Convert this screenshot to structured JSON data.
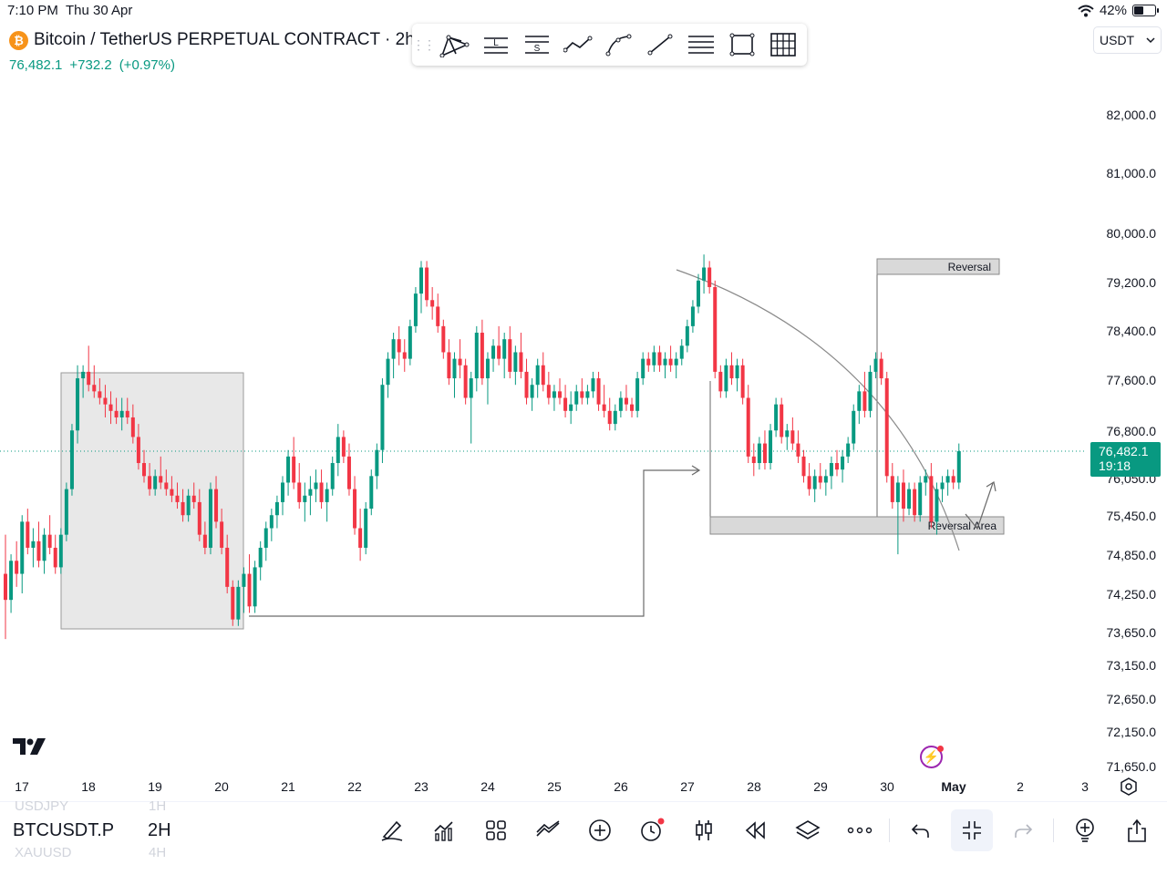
{
  "status_bar": {
    "time": "7:10 PM",
    "date": "Thu 30 Apr",
    "battery": "42%"
  },
  "header": {
    "title": "Bitcoin / TetherUS PERPETUAL CONTRACT · 2h ·",
    "coin_icon": "₿",
    "last_price": "76,482.1",
    "change": "+732.2",
    "change_pct": "(+0.97%)"
  },
  "drawing_toolbar": {
    "tools": [
      "pitchfork-icon",
      "long-position-icon",
      "short-position-icon",
      "path-icon",
      "curve-icon",
      "trend-line-icon",
      "horizontal-lines-icon",
      "rectangle-icon",
      "grid-icon"
    ],
    "long_letter": "L",
    "short_letter": "S"
  },
  "currency": {
    "selected": "USDT"
  },
  "price_axis": [
    "82,000.0",
    "81,000.0",
    "80,000.0",
    "79,200.0",
    "78,400.0",
    "77,600.0",
    "76,800.0",
    "76,050.0",
    "75,450.0",
    "74,850.0",
    "74,250.0",
    "73,650.0",
    "73,150.0",
    "72,650.0",
    "72,150.0",
    "71,650.0"
  ],
  "price_tag": {
    "price": "76,482.1",
    "countdown": "19:18"
  },
  "time_axis": [
    "17",
    "18",
    "19",
    "20",
    "21",
    "22",
    "23",
    "24",
    "25",
    "26",
    "27",
    "28",
    "29",
    "30",
    "May",
    "2",
    "3"
  ],
  "annotations": {
    "reversal_label": "Reversal",
    "reversal_area_label": "Reversal Area"
  },
  "colors": {
    "up": "#089981",
    "down": "#f23645",
    "accent": "#2962ff",
    "shade": "#e8e8e8",
    "box": "#d9d9d9"
  },
  "chart_data": {
    "type": "candlestick",
    "symbol": "BTCUSDT.P",
    "interval": "2h",
    "last_price": 76482.1,
    "ylim": [
      71400,
      82600
    ],
    "x": [
      "17",
      "18",
      "19",
      "20",
      "21",
      "22",
      "23",
      "24",
      "25",
      "26",
      "27",
      "28",
      "29",
      "30",
      "May",
      "2",
      "3"
    ],
    "candles": [
      [
        74600,
        75200,
        73600,
        74200
      ],
      [
        74200,
        74900,
        74000,
        74800
      ],
      [
        74800,
        75100,
        74400,
        74600
      ],
      [
        74600,
        75500,
        74300,
        75400
      ],
      [
        75400,
        75600,
        74900,
        75000
      ],
      [
        75000,
        75300,
        74700,
        75100
      ],
      [
        75100,
        75400,
        74700,
        74800
      ],
      [
        74800,
        75300,
        74600,
        75200
      ],
      [
        75200,
        75500,
        74900,
        75000
      ],
      [
        75000,
        75200,
        74600,
        74700
      ],
      [
        74700,
        75300,
        74600,
        75200
      ],
      [
        75200,
        76000,
        75100,
        75900
      ],
      [
        75900,
        76900,
        75800,
        76800
      ],
      [
        76800,
        77800,
        76600,
        77600
      ],
      [
        77600,
        77800,
        77300,
        77700
      ],
      [
        77700,
        78100,
        77400,
        77500
      ],
      [
        77500,
        77800,
        77300,
        77400
      ],
      [
        77400,
        77600,
        77200,
        77300
      ],
      [
        77300,
        77500,
        77000,
        77200
      ],
      [
        77200,
        77400,
        76900,
        77100
      ],
      [
        77100,
        77300,
        76900,
        77000
      ],
      [
        77000,
        77300,
        76800,
        77100
      ],
      [
        77100,
        77300,
        76900,
        77000
      ],
      [
        77000,
        77200,
        76600,
        76700
      ],
      [
        76700,
        76900,
        76200,
        76300
      ],
      [
        76300,
        76500,
        76000,
        76100
      ],
      [
        76100,
        76300,
        75800,
        75900
      ],
      [
        75900,
        76200,
        75800,
        76100
      ],
      [
        76100,
        76400,
        75900,
        76000
      ],
      [
        76000,
        76200,
        75800,
        75900
      ],
      [
        75900,
        76100,
        75700,
        75800
      ],
      [
        75800,
        76000,
        75600,
        75700
      ],
      [
        75700,
        75900,
        75400,
        75500
      ],
      [
        75500,
        75900,
        75400,
        75800
      ],
      [
        75800,
        76000,
        75600,
        75700
      ],
      [
        75700,
        75900,
        75100,
        75200
      ],
      [
        75200,
        75400,
        74900,
        75000
      ],
      [
        75000,
        76000,
        74900,
        75900
      ],
      [
        75900,
        76100,
        75300,
        75400
      ],
      [
        75400,
        75600,
        74900,
        75000
      ],
      [
        75000,
        75200,
        74300,
        74400
      ],
      [
        74400,
        74500,
        73800,
        73900
      ],
      [
        73900,
        74500,
        73800,
        74400
      ],
      [
        74400,
        74700,
        74000,
        74600
      ],
      [
        74600,
        74900,
        74000,
        74100
      ],
      [
        74100,
        74800,
        74000,
        74700
      ],
      [
        74700,
        75100,
        74500,
        75000
      ],
      [
        75000,
        75400,
        74800,
        75300
      ],
      [
        75300,
        75600,
        75100,
        75500
      ],
      [
        75500,
        75800,
        75300,
        75700
      ],
      [
        75700,
        76100,
        75500,
        76000
      ],
      [
        76000,
        76500,
        75800,
        76400
      ],
      [
        76400,
        76700,
        75900,
        76000
      ],
      [
        76000,
        76300,
        75600,
        75700
      ],
      [
        75700,
        76000,
        75400,
        75800
      ],
      [
        75800,
        76100,
        75500,
        75900
      ],
      [
        75900,
        76200,
        75700,
        76000
      ],
      [
        76000,
        76200,
        75600,
        75700
      ],
      [
        75700,
        76000,
        75400,
        75900
      ],
      [
        75900,
        76400,
        75800,
        76300
      ],
      [
        76300,
        76900,
        76100,
        76700
      ],
      [
        76700,
        76800,
        76300,
        76400
      ],
      [
        76400,
        76600,
        75800,
        75900
      ],
      [
        75900,
        76100,
        75200,
        75300
      ],
      [
        75300,
        75600,
        74800,
        75000
      ],
      [
        75000,
        75700,
        74900,
        75600
      ],
      [
        75600,
        76200,
        75500,
        76100
      ],
      [
        76100,
        76600,
        75900,
        76500
      ],
      [
        76500,
        77600,
        76300,
        77500
      ],
      [
        77500,
        78000,
        77300,
        77900
      ],
      [
        77900,
        78300,
        77600,
        78200
      ],
      [
        78200,
        78400,
        77800,
        78000
      ],
      [
        78000,
        78200,
        77700,
        77900
      ],
      [
        77900,
        78500,
        77800,
        78400
      ],
      [
        78400,
        79000,
        78300,
        78900
      ],
      [
        78900,
        79400,
        78600,
        79300
      ],
      [
        79300,
        79400,
        78700,
        78800
      ],
      [
        78800,
        79000,
        78500,
        78700
      ],
      [
        78700,
        78900,
        78300,
        78400
      ],
      [
        78400,
        78500,
        77900,
        78000
      ],
      [
        78000,
        78200,
        77500,
        77600
      ],
      [
        77600,
        78000,
        77300,
        77900
      ],
      [
        77900,
        78200,
        77600,
        77800
      ],
      [
        77800,
        77900,
        77200,
        77300
      ],
      [
        77300,
        77700,
        76600,
        77600
      ],
      [
        77600,
        78400,
        77400,
        78300
      ],
      [
        78300,
        78500,
        77500,
        77600
      ],
      [
        77600,
        78000,
        77200,
        77900
      ],
      [
        77900,
        78200,
        77700,
        78100
      ],
      [
        78100,
        78400,
        77800,
        77900
      ],
      [
        77900,
        78300,
        77600,
        78200
      ],
      [
        78200,
        78400,
        77600,
        77700
      ],
      [
        77700,
        78100,
        77500,
        78000
      ],
      [
        78000,
        78300,
        77600,
        77700
      ],
      [
        77700,
        77900,
        77200,
        77300
      ],
      [
        77300,
        77600,
        77100,
        77500
      ],
      [
        77500,
        77900,
        77300,
        77800
      ],
      [
        77800,
        78000,
        77400,
        77500
      ],
      [
        77500,
        77700,
        77200,
        77300
      ],
      [
        77300,
        77500,
        77100,
        77400
      ],
      [
        77400,
        77600,
        77200,
        77300
      ],
      [
        77300,
        77500,
        77000,
        77100
      ],
      [
        77100,
        77400,
        76900,
        77200
      ],
      [
        77200,
        77500,
        77100,
        77400
      ],
      [
        77400,
        77600,
        77200,
        77300
      ],
      [
        77300,
        77500,
        77200,
        77400
      ],
      [
        77400,
        77700,
        77300,
        77600
      ],
      [
        77600,
        77700,
        77100,
        77200
      ],
      [
        77200,
        77500,
        77000,
        77100
      ],
      [
        77100,
        77300,
        76800,
        76900
      ],
      [
        76900,
        77200,
        76800,
        77100
      ],
      [
        77100,
        77400,
        77000,
        77300
      ],
      [
        77300,
        77500,
        77100,
        77200
      ],
      [
        77200,
        77300,
        77000,
        77100
      ],
      [
        77100,
        77700,
        77000,
        77600
      ],
      [
        77600,
        78000,
        77500,
        77900
      ],
      [
        77900,
        78000,
        77700,
        77800
      ],
      [
        77800,
        78100,
        77700,
        78000
      ],
      [
        78000,
        78100,
        77700,
        77800
      ],
      [
        77800,
        78000,
        77600,
        77900
      ],
      [
        77900,
        78100,
        77700,
        77800
      ],
      [
        77800,
        78000,
        77600,
        77900
      ],
      [
        77900,
        78200,
        77800,
        78100
      ],
      [
        78100,
        78500,
        78000,
        78400
      ],
      [
        78400,
        78800,
        78300,
        78700
      ],
      [
        78700,
        79200,
        78600,
        79100
      ],
      [
        79100,
        79500,
        78900,
        79300
      ],
      [
        79300,
        79400,
        78900,
        79000
      ],
      [
        79000,
        79100,
        77600,
        77700
      ],
      [
        77700,
        77800,
        77300,
        77400
      ],
      [
        77400,
        77900,
        77300,
        77800
      ],
      [
        77800,
        78000,
        77500,
        77600
      ],
      [
        77600,
        77900,
        77400,
        77800
      ],
      [
        77800,
        77900,
        77200,
        77300
      ],
      [
        77300,
        77500,
        76300,
        76400
      ],
      [
        76400,
        76600,
        76100,
        76300
      ],
      [
        76300,
        76700,
        76200,
        76600
      ],
      [
        76600,
        76800,
        76200,
        76300
      ],
      [
        76300,
        76900,
        76200,
        76800
      ],
      [
        76800,
        77300,
        76700,
        77200
      ],
      [
        77200,
        77300,
        76600,
        76700
      ],
      [
        76700,
        76900,
        76500,
        76800
      ],
      [
        76800,
        77000,
        76500,
        76600
      ],
      [
        76600,
        76800,
        76300,
        76400
      ],
      [
        76400,
        76500,
        76000,
        76100
      ],
      [
        76100,
        76300,
        75800,
        75900
      ],
      [
        75900,
        76200,
        75700,
        76100
      ],
      [
        76100,
        76300,
        75900,
        76000
      ],
      [
        76000,
        76200,
        75800,
        76100
      ],
      [
        76100,
        76400,
        75900,
        76300
      ],
      [
        76300,
        76500,
        76100,
        76200
      ],
      [
        76200,
        76500,
        76000,
        76400
      ],
      [
        76400,
        76700,
        76300,
        76600
      ],
      [
        76600,
        77200,
        76500,
        77100
      ],
      [
        77100,
        77500,
        76900,
        77400
      ],
      [
        77400,
        77700,
        77000,
        77100
      ],
      [
        77100,
        77800,
        77000,
        77700
      ],
      [
        77700,
        78000,
        77600,
        77900
      ],
      [
        77900,
        78000,
        77500,
        77600
      ],
      [
        77600,
        77700,
        76000,
        76100
      ],
      [
        76100,
        76300,
        75600,
        75700
      ],
      [
        75700,
        76100,
        74900,
        76000
      ],
      [
        76000,
        76200,
        75400,
        75600
      ],
      [
        75600,
        76000,
        75500,
        75900
      ],
      [
        75900,
        76000,
        75400,
        75500
      ],
      [
        75500,
        76100,
        75400,
        76000
      ],
      [
        76000,
        76200,
        75800,
        76100
      ],
      [
        76100,
        76300,
        75300,
        75400
      ],
      [
        75400,
        76000,
        75200,
        75900
      ],
      [
        75900,
        76100,
        75700,
        76000
      ],
      [
        76000,
        76200,
        75800,
        76100
      ],
      [
        76100,
        76200,
        75900,
        76000
      ],
      [
        76000,
        76600,
        75900,
        76482.1
      ]
    ]
  },
  "bottom_bar": {
    "ghost_ticker_top": "USDJPY",
    "ghost_interval_top": "1H",
    "ticker": "BTCUSDT.P",
    "interval": "2H",
    "ghost_ticker_bottom": "XAUUSD",
    "ghost_interval_bottom": "4H",
    "icons": [
      "pen-icon",
      "indicators-icon",
      "layout-grid-icon",
      "compare-icon",
      "add-circle-icon",
      "alert-clock-icon",
      "candles-icon",
      "replay-icon",
      "layers-icon",
      "more-icon",
      "undo-icon",
      "collapse-icon",
      "redo-icon",
      "idea-bulb-icon",
      "share-icon"
    ]
  }
}
